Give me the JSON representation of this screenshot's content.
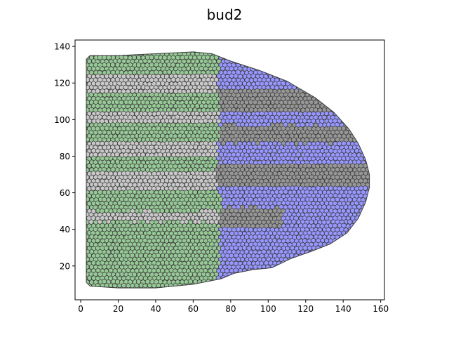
{
  "chart_data": {
    "type": "scatter",
    "title": "bud2",
    "xlabel": "",
    "ylabel": "",
    "xlim": [
      -3,
      162
    ],
    "ylim": [
      1.5,
      143.5
    ],
    "xticks": [
      0,
      20,
      40,
      60,
      80,
      100,
      120,
      140,
      160
    ],
    "yticks": [
      20,
      40,
      60,
      80,
      100,
      120,
      140
    ],
    "grid": false,
    "legend": "none",
    "colors": {
      "green": "#96c896",
      "light_gray": "#c8c8c8",
      "blue": "#9696ff",
      "dark_gray": "#969696",
      "edge": "#3c3c3c"
    },
    "regions": {
      "outline": [
        [
          3,
          133
        ],
        [
          5,
          135
        ],
        [
          20,
          135
        ],
        [
          40,
          136
        ],
        [
          60,
          137
        ],
        [
          70,
          136
        ],
        [
          80,
          132
        ],
        [
          95,
          127
        ],
        [
          110,
          121
        ],
        [
          125,
          112
        ],
        [
          135,
          104
        ],
        [
          143,
          95
        ],
        [
          148,
          87
        ],
        [
          152,
          78
        ],
        [
          154,
          70
        ],
        [
          154,
          63
        ],
        [
          152,
          55
        ],
        [
          148,
          46
        ],
        [
          142,
          38
        ],
        [
          133,
          32
        ],
        [
          123,
          28
        ],
        [
          112,
          24
        ],
        [
          102,
          19
        ],
        [
          92,
          18
        ],
        [
          82,
          16
        ],
        [
          75,
          13
        ],
        [
          60,
          10
        ],
        [
          40,
          8
        ],
        [
          20,
          8
        ],
        [
          5,
          9
        ],
        [
          3,
          11
        ]
      ],
      "boundary_x": [
        [
          133,
          74
        ],
        [
          115,
          73
        ],
        [
          100,
          75
        ],
        [
          85,
          73
        ],
        [
          70,
          72
        ],
        [
          55,
          75
        ],
        [
          40,
          74
        ],
        [
          25,
          74
        ],
        [
          10,
          73
        ]
      ],
      "light_stripes": [
        [
          114,
          125
        ],
        [
          98,
          104
        ],
        [
          80,
          88
        ],
        [
          62,
          72
        ],
        [
          44,
          50
        ]
      ],
      "dark_stripes": [
        [
          105,
          117,
          160
        ],
        [
          87,
          97,
          160
        ],
        [
          64,
          76,
          160
        ],
        [
          40,
          52,
          108
        ]
      ]
    }
  }
}
